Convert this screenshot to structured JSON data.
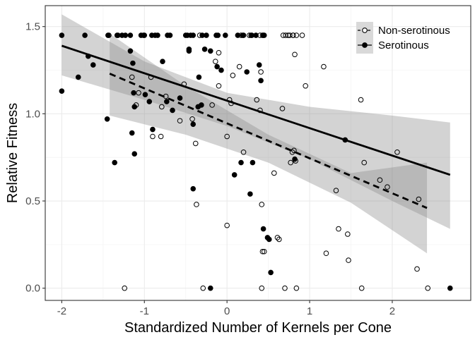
{
  "chart_data": {
    "type": "scatter",
    "xlabel": "Standardized Number of Kernels per Cone",
    "ylabel": "Relative Fitness",
    "xlim": [
      -2.2,
      2.95
    ],
    "ylim": [
      -0.07,
      1.62
    ],
    "x_ticks": [
      -2,
      -1,
      0,
      1,
      2
    ],
    "x_tick_labels": [
      "-2",
      "-1",
      "0",
      "1",
      "2"
    ],
    "y_ticks": [
      0.0,
      0.5,
      1.0,
      1.5
    ],
    "y_tick_labels": [
      "0.0",
      "0.5",
      "1.0",
      "1.5"
    ],
    "grid": true,
    "legend_position": "top-right",
    "colors": {
      "band": "#8c8c8c",
      "line": "#000000",
      "grid_major": "#ebebeb",
      "grid_minor": "#f4f4f4",
      "panel_border": "#333333",
      "axis_text": "#4d4d4d"
    },
    "series": [
      {
        "name": "Non-serotinous",
        "marker": "open-circle",
        "line_style": "dashed",
        "fit": {
          "x": [
            -1.42,
            2.42
          ],
          "y": [
            1.23,
            0.46
          ]
        },
        "ci": {
          "x": [
            -1.42,
            -0.5,
            0.5,
            1.5,
            2.42
          ],
          "lower": [
            0.99,
            0.88,
            0.72,
            0.49,
            0.2
          ],
          "upper": [
            1.46,
            1.16,
            0.88,
            0.66,
            0.72
          ]
        },
        "x": [
          -1.43,
          -1.32,
          -1.15,
          -1.1,
          -1.07,
          -0.9,
          -0.92,
          -0.8,
          -0.79,
          -0.74,
          -0.57,
          -0.52,
          -0.42,
          -0.38,
          -0.37,
          -0.33,
          -0.18,
          -0.14,
          -0.1,
          0.0,
          -0.1,
          0.03,
          0.05,
          0.07,
          0.15,
          0.17,
          0.2,
          0.27,
          0.29,
          0.36,
          0.4,
          0.41,
          0.43,
          0.42,
          0.45,
          0.4,
          0.43,
          0.57,
          0.61,
          0.63,
          0.67,
          0.68,
          0.71,
          0.74,
          0.76,
          0.77,
          0.79,
          0.8,
          0.81,
          0.82,
          0.83,
          0.91,
          0.95,
          0.8,
          0.84,
          1.17,
          1.2,
          1.32,
          1.35,
          1.46,
          1.47,
          1.62,
          1.66,
          1.63,
          1.85,
          1.94,
          2.06,
          2.32,
          2.3,
          2.43,
          0.0,
          -0.29,
          0.42,
          0.7,
          0.84,
          -1.24
        ],
        "y": [
          1.45,
          1.45,
          1.21,
          1.05,
          1.12,
          0.87,
          1.21,
          0.87,
          1.04,
          1.1,
          0.96,
          1.17,
          0.97,
          0.83,
          0.48,
          1.45,
          1.05,
          1.3,
          1.35,
          0.87,
          1.16,
          1.08,
          1.06,
          1.22,
          1.27,
          1.45,
          0.78,
          1.45,
          1.45,
          1.08,
          1.02,
          1.24,
          0.21,
          0.48,
          0.21,
          1.45,
          1.45,
          0.66,
          0.29,
          0.28,
          1.03,
          1.45,
          1.45,
          1.45,
          1.45,
          0.72,
          0.78,
          1.45,
          0.79,
          1.34,
          0.73,
          1.45,
          1.16,
          1.45,
          1.45,
          1.27,
          0.2,
          0.56,
          0.34,
          0.31,
          0.16,
          1.08,
          0.72,
          0.0,
          0.62,
          0.58,
          0.78,
          0.51,
          0.11,
          0.0,
          0.36,
          0.0,
          0.0,
          0.0,
          0.0,
          0.0
        ]
      },
      {
        "name": "Serotinous",
        "marker": "filled-circle",
        "line_style": "solid",
        "fit": {
          "x": [
            -2.0,
            2.7
          ],
          "y": [
            1.39,
            0.65
          ]
        },
        "ci": {
          "x": [
            -2.0,
            -1.0,
            0.0,
            1.0,
            2.0,
            2.7
          ],
          "lower": [
            1.22,
            1.08,
            0.93,
            0.74,
            0.5,
            0.34
          ],
          "upper": [
            1.57,
            1.3,
            1.12,
            1.04,
            0.99,
            0.95
          ]
        },
        "x": [
          -2.0,
          -2.0,
          -1.72,
          -1.68,
          -1.62,
          -1.8,
          -1.44,
          -1.45,
          -1.36,
          -1.33,
          -1.27,
          -1.23,
          -1.17,
          -1.14,
          -1.12,
          -1.15,
          -1.12,
          -1.04,
          -1.13,
          -1.17,
          -1.01,
          -1.0,
          -0.99,
          -0.94,
          -0.91,
          -0.9,
          -0.87,
          -0.84,
          -0.78,
          -0.73,
          -0.72,
          -0.69,
          -0.66,
          -0.57,
          -0.5,
          -0.46,
          -0.44,
          -0.41,
          -0.41,
          -0.35,
          -0.34,
          -0.3,
          -0.25,
          -0.2,
          -0.13,
          -0.12,
          -0.07,
          -0.11,
          -0.02,
          0.09,
          0.17,
          0.2,
          0.19,
          0.24,
          0.28,
          0.31,
          0.3,
          0.39,
          0.41,
          0.45,
          0.44,
          0.49,
          0.51,
          0.53,
          0.44,
          0.35,
          0.13,
          -0.27,
          -0.46,
          -0.48,
          -0.41,
          1.43,
          2.7,
          -0.2,
          0.82,
          -0.31
        ],
        "y": [
          1.45,
          1.13,
          1.45,
          1.33,
          1.28,
          1.21,
          1.45,
          0.97,
          0.72,
          1.45,
          1.45,
          1.45,
          1.36,
          1.29,
          1.04,
          0.89,
          0.77,
          1.45,
          1.12,
          1.45,
          1.45,
          1.45,
          1.11,
          1.07,
          1.45,
          0.91,
          1.45,
          1.45,
          1.3,
          1.07,
          1.45,
          1.45,
          1.02,
          1.09,
          1.45,
          1.36,
          1.45,
          0.94,
          0.57,
          1.04,
          1.21,
          1.45,
          1.45,
          1.36,
          1.45,
          1.27,
          1.25,
          1.45,
          1.45,
          0.65,
          0.72,
          1.45,
          1.45,
          1.24,
          0.54,
          0.72,
          1.45,
          1.28,
          1.19,
          1.45,
          0.34,
          0.29,
          0.28,
          0.09,
          1.45,
          1.45,
          1.45,
          1.37,
          1.37,
          1.45,
          1.45,
          0.85,
          0.0,
          0.0,
          0.74,
          1.05
        ]
      }
    ]
  }
}
